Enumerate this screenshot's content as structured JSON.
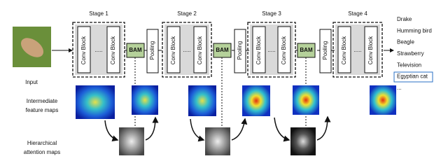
{
  "input_label": "Input",
  "stages": [
    {
      "title": "Stage 1",
      "blocks": [
        "Conv Block",
        "Conv Block"
      ],
      "ellipsis": "....."
    },
    {
      "title": "Stage 2",
      "blocks": [
        "Conv Block",
        "Conv Block"
      ],
      "ellipsis": "....."
    },
    {
      "title": "Stage 3",
      "blocks": [
        "Conv Block",
        "Conv Block"
      ],
      "ellipsis": "....."
    },
    {
      "title": "Stage 4",
      "blocks": [
        "Conv Block",
        "Conv Block"
      ],
      "ellipsis": "....."
    }
  ],
  "bam": [
    "BAM",
    "BAM",
    "BAM"
  ],
  "pooling": [
    "Pooling",
    "Pooling",
    "Pooling"
  ],
  "outputs": [
    "Drake",
    "Humming bird",
    "Beagle",
    "Strawberry",
    "Television",
    "Egyptian cat",
    "..."
  ],
  "row_labels": {
    "feature": [
      "Intermediate",
      "feature maps"
    ],
    "attention": [
      "Hierarchical",
      "attention maps"
    ]
  }
}
